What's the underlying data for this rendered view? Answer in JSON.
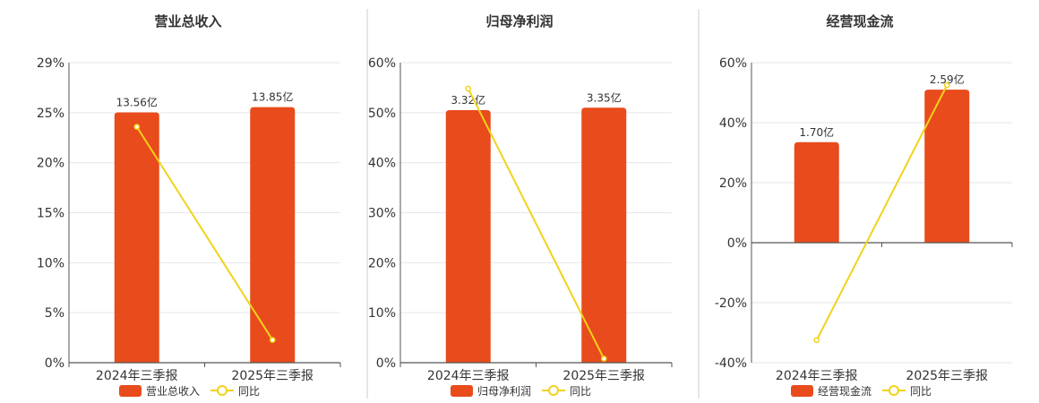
{
  "colors": {
    "bar": "#e84b1c",
    "line": "#f2d21b",
    "grid": "#e6e6ee",
    "axis": "#555555",
    "divider": "#cccccc"
  },
  "chart_data": [
    {
      "type": "bar",
      "title": "营业总收入",
      "categories": [
        "2024年三季报",
        "2025年三季报"
      ],
      "yticks": [
        "29%",
        "25%",
        "20%",
        "15%",
        "10%",
        "5%",
        "0%"
      ],
      "ylim": [
        0,
        29
      ],
      "series": [
        {
          "name": "营业总收入",
          "kind": "bar",
          "values": [
            24.2,
            24.7
          ],
          "labels": [
            "13.56亿",
            "13.85亿"
          ]
        },
        {
          "name": "同比",
          "kind": "line",
          "values": [
            22.8,
            2.2
          ]
        }
      ],
      "legend": "bottom"
    },
    {
      "type": "bar",
      "title": "归母净利润",
      "categories": [
        "2024年三季报",
        "2025年三季报"
      ],
      "yticks": [
        "60%",
        "50%",
        "40%",
        "30%",
        "20%",
        "10%",
        "0%"
      ],
      "ylim": [
        0,
        60
      ],
      "series": [
        {
          "name": "归母净利润",
          "kind": "bar",
          "values": [
            50.5,
            51.0
          ],
          "labels": [
            "3.32亿",
            "3.35亿"
          ]
        },
        {
          "name": "同比",
          "kind": "line",
          "values": [
            54.8,
            0.8
          ]
        }
      ],
      "legend": "bottom"
    },
    {
      "type": "bar",
      "title": "经营现金流",
      "categories": [
        "2024年三季报",
        "2025年三季报"
      ],
      "yticks": [
        "60%",
        "40%",
        "20%",
        "0%",
        "-20%",
        "-40%"
      ],
      "ylim": [
        -40,
        60
      ],
      "series": [
        {
          "name": "经营现金流",
          "kind": "bar",
          "values": [
            33.5,
            51.0
          ],
          "labels": [
            "1.70亿",
            "2.59亿"
          ]
        },
        {
          "name": "同比",
          "kind": "line",
          "values": [
            -32.5,
            52.5
          ]
        }
      ],
      "legend": "bottom"
    }
  ]
}
